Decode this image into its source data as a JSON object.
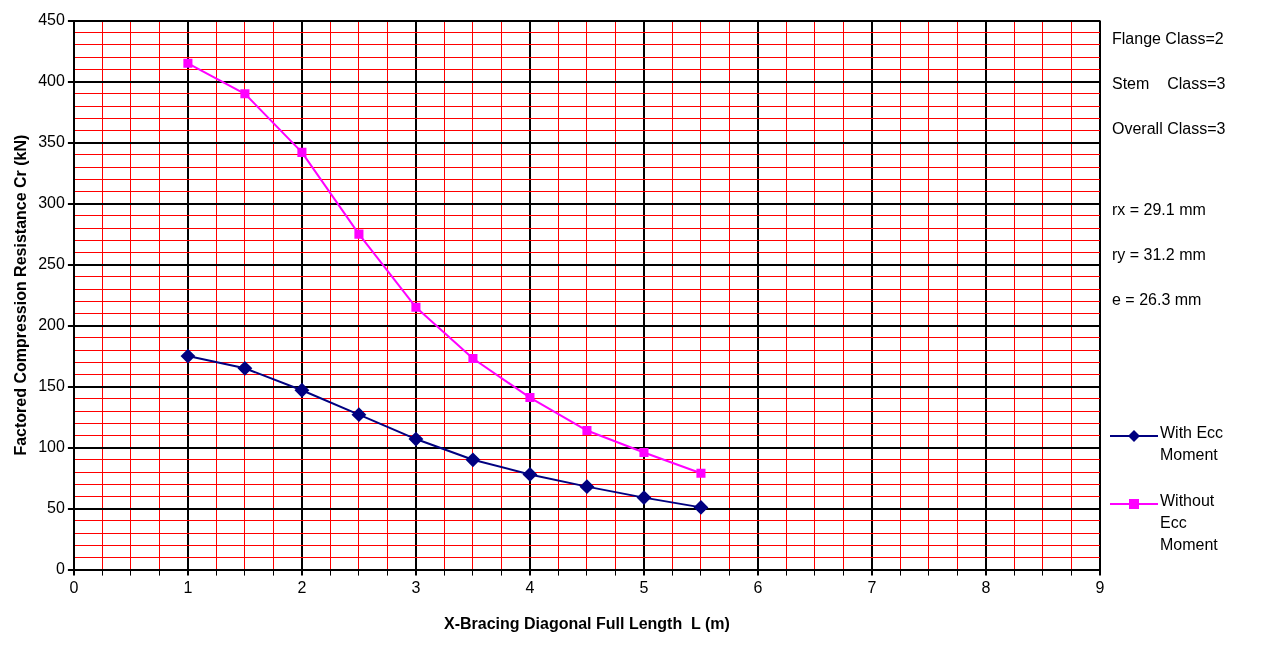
{
  "chart_data": {
    "type": "line",
    "xlabel": "X-Bracing Diagonal Full Length  L (m)",
    "ylabel": "Factored Compression Resistance Cr (kN)",
    "xlim": [
      0,
      9
    ],
    "ylim": [
      0,
      450
    ],
    "xticks": [
      0,
      {
        "value": 0.25,
        "label": null
      },
      {
        "value": 0.5,
        "label": null
      },
      {
        "value": 0.75,
        "label": null
      },
      1,
      {
        "value": 1.25,
        "label": null
      },
      {
        "value": 1.5,
        "label": null
      },
      {
        "value": 1.75,
        "label": null
      },
      2,
      {
        "value": 2.25,
        "label": null
      },
      {
        "value": 2.5,
        "label": null
      },
      {
        "value": 2.75,
        "label": null
      },
      3,
      {
        "value": 3.25,
        "label": null
      },
      {
        "value": 3.5,
        "label": null
      },
      {
        "value": 3.75,
        "label": null
      },
      4,
      {
        "value": 4.25,
        "label": null
      },
      {
        "value": 4.5,
        "label": null
      },
      {
        "value": 4.75,
        "label": null
      },
      5,
      {
        "value": 5.25,
        "label": null
      },
      {
        "value": 5.5,
        "label": null
      },
      {
        "value": 5.75,
        "label": null
      },
      6,
      {
        "value": 6.25,
        "label": null
      },
      {
        "value": 6.5,
        "label": null
      },
      {
        "value": 6.75,
        "label": null
      },
      7,
      {
        "value": 7.25,
        "label": null
      },
      {
        "value": 7.5,
        "label": null
      },
      {
        "value": 7.75,
        "label": null
      },
      8,
      {
        "value": 8.25,
        "label": null
      },
      {
        "value": 8.5,
        "label": null
      },
      {
        "value": 8.75,
        "label": null
      },
      9
    ],
    "yticks": [
      0,
      {
        "value": 10,
        "label": null
      },
      {
        "value": 20,
        "label": null
      },
      {
        "value": 30,
        "label": null
      },
      {
        "value": 40,
        "label": null
      },
      50,
      {
        "value": 60,
        "label": null
      },
      {
        "value": 70,
        "label": null
      },
      {
        "value": 80,
        "label": null
      },
      {
        "value": 90,
        "label": null
      },
      100,
      {
        "value": 110,
        "label": null
      },
      {
        "value": 120,
        "label": null
      },
      {
        "value": 130,
        "label": null
      },
      {
        "value": 140,
        "label": null
      },
      150,
      {
        "value": 160,
        "label": null
      },
      {
        "value": 170,
        "label": null
      },
      {
        "value": 180,
        "label": null
      },
      {
        "value": 190,
        "label": null
      },
      200,
      {
        "value": 210,
        "label": null
      },
      {
        "value": 220,
        "label": null
      },
      {
        "value": 230,
        "label": null
      },
      {
        "value": 240,
        "label": null
      },
      250,
      {
        "value": 260,
        "label": null
      },
      {
        "value": 270,
        "label": null
      },
      {
        "value": 280,
        "label": null
      },
      {
        "value": 290,
        "label": null
      },
      300,
      {
        "value": 310,
        "label": null
      },
      {
        "value": 320,
        "label": null
      },
      {
        "value": 330,
        "label": null
      },
      {
        "value": 340,
        "label": null
      },
      350,
      {
        "value": 360,
        "label": null
      },
      {
        "value": 370,
        "label": null
      },
      {
        "value": 380,
        "label": null
      },
      {
        "value": 390,
        "label": null
      },
      400,
      {
        "value": 410,
        "label": null
      },
      {
        "value": 420,
        "label": null
      },
      {
        "value": 430,
        "label": null
      },
      {
        "value": 440,
        "label": null
      },
      450
    ],
    "x": [
      1,
      1.5,
      2,
      2.5,
      3,
      3.5,
      4,
      4.5,
      5,
      5.5
    ],
    "series": [
      {
        "name": "With Ecc Moment",
        "color": "#000080",
        "marker": "diamond",
        "values": [
          175,
          165,
          147,
          127,
          107,
          90,
          78,
          68,
          59,
          51
        ]
      },
      {
        "name": "Without Ecc Moment",
        "color": "#ff00ff",
        "marker": "square",
        "values": [
          415,
          390,
          342,
          275,
          215,
          173,
          141,
          114,
          96,
          79
        ]
      }
    ],
    "annotations": [
      "Flange Class=2",
      "Stem    Class=3",
      "Overall Class=3",
      "rx = 29.1 mm",
      "ry = 31.2 mm",
      "e = 26.3 mm"
    ],
    "grid": true,
    "legend": "right",
    "line_style": "solid"
  }
}
